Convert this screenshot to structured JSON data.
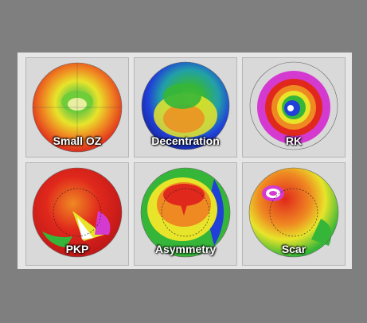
{
  "panels": [
    {
      "id": "small-oz",
      "label": "Small OZ"
    },
    {
      "id": "decentration",
      "label": "Decentration"
    },
    {
      "id": "rk",
      "label": "RK"
    },
    {
      "id": "pkp",
      "label": "PKP"
    },
    {
      "id": "asymmetry",
      "label": "Asymmetry"
    },
    {
      "id": "scar",
      "label": "Scar"
    }
  ],
  "colors": {
    "red": "#e0281c",
    "orange": "#ef8a22",
    "yellow": "#e8e42a",
    "green": "#36b638",
    "blue": "#2040d8",
    "magenta": "#d43ad0",
    "background": "#7f7f7f"
  }
}
